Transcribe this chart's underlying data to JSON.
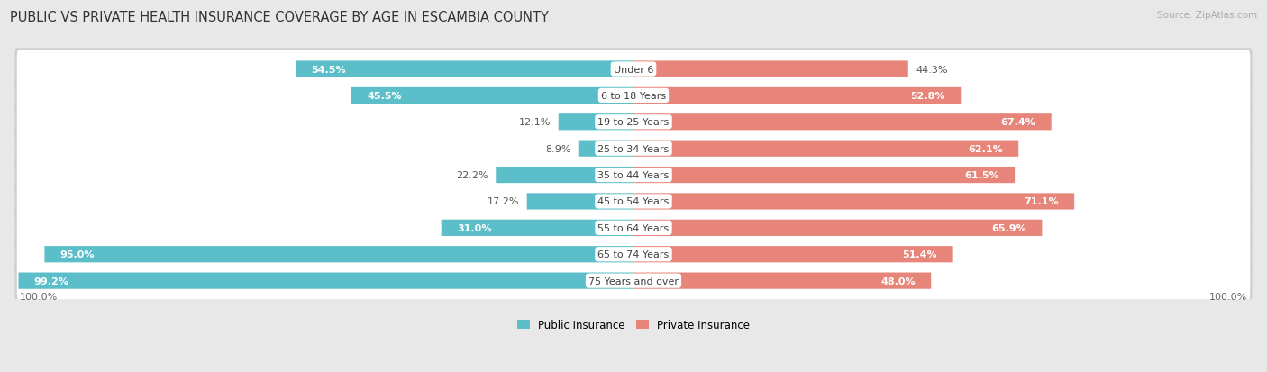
{
  "title": "PUBLIC VS PRIVATE HEALTH INSURANCE COVERAGE BY AGE IN ESCAMBIA COUNTY",
  "source": "Source: ZipAtlas.com",
  "categories": [
    "Under 6",
    "6 to 18 Years",
    "19 to 25 Years",
    "25 to 34 Years",
    "35 to 44 Years",
    "45 to 54 Years",
    "55 to 64 Years",
    "65 to 74 Years",
    "75 Years and over"
  ],
  "public_values": [
    54.5,
    45.5,
    12.1,
    8.9,
    22.2,
    17.2,
    31.0,
    95.0,
    99.2
  ],
  "private_values": [
    44.3,
    52.8,
    67.4,
    62.1,
    61.5,
    71.1,
    65.9,
    51.4,
    48.0
  ],
  "public_color": "#5bbec8",
  "private_color": "#e8857a",
  "bg_color": "#e8e8e8",
  "max_value": 100.0,
  "legend_public": "Public Insurance",
  "legend_private": "Private Insurance",
  "title_fontsize": 10.5,
  "source_fontsize": 7.5,
  "label_fontsize": 8.5,
  "category_fontsize": 8,
  "value_fontsize": 8,
  "axis_label_fontsize": 8,
  "pub_inside_threshold": 25,
  "priv_inside_threshold": 45
}
